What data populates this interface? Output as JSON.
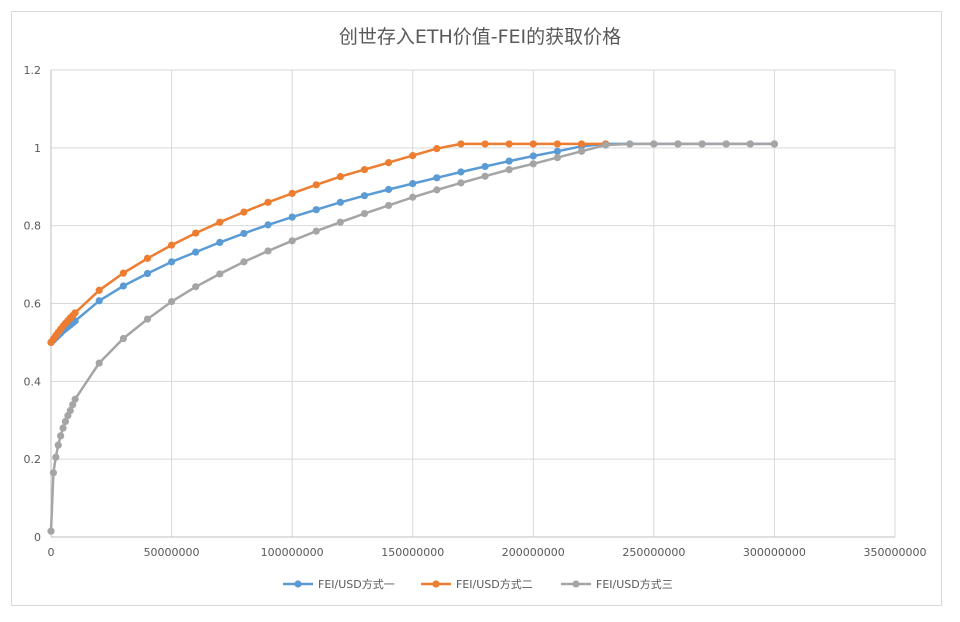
{
  "chart_data": {
    "type": "line",
    "title": "创世存入ETH价值-FEI的获取价格",
    "xlabel": "",
    "ylabel": "",
    "xlim": [
      0,
      350000000
    ],
    "ylim": [
      0,
      1.2
    ],
    "x_ticks": [
      "0",
      "50000000",
      "100000000",
      "150000000",
      "200000000",
      "250000000",
      "300000000",
      "350000000"
    ],
    "y_ticks": [
      "0",
      "0.2",
      "0.4",
      "0.6",
      "0.8",
      "1",
      "1.2"
    ],
    "grid": true,
    "legend_position": "bottom",
    "series": [
      {
        "name": "FEI/USD方式一",
        "color": "#5b9bd5",
        "x": [
          0,
          1000000,
          2000000,
          3000000,
          4000000,
          5000000,
          6000000,
          7000000,
          8000000,
          9000000,
          10000000,
          20000000,
          30000000,
          40000000,
          50000000,
          60000000,
          70000000,
          80000000,
          90000000,
          100000000,
          110000000,
          120000000,
          130000000,
          140000000,
          150000000,
          160000000,
          170000000,
          180000000,
          190000000,
          200000000,
          210000000,
          220000000,
          230000000,
          240000000,
          250000000,
          260000000,
          270000000,
          280000000,
          290000000,
          300000000
        ],
        "y": [
          0.5,
          0.506,
          0.512,
          0.518,
          0.524,
          0.53,
          0.535,
          0.54,
          0.545,
          0.55,
          0.555,
          0.607,
          0.645,
          0.677,
          0.707,
          0.732,
          0.757,
          0.78,
          0.802,
          0.822,
          0.841,
          0.86,
          0.877,
          0.893,
          0.908,
          0.923,
          0.938,
          0.952,
          0.966,
          0.979,
          0.991,
          1.004,
          1.01,
          1.01,
          1.01,
          1.01,
          1.01,
          1.01,
          1.01,
          1.01
        ]
      },
      {
        "name": "FEI/USD方式二",
        "color": "#ed7d31",
        "x": [
          0,
          1000000,
          2000000,
          3000000,
          4000000,
          5000000,
          6000000,
          7000000,
          8000000,
          9000000,
          10000000,
          20000000,
          30000000,
          40000000,
          50000000,
          60000000,
          70000000,
          80000000,
          90000000,
          100000000,
          110000000,
          120000000,
          130000000,
          140000000,
          150000000,
          160000000,
          170000000,
          180000000,
          190000000,
          200000000,
          210000000,
          220000000,
          230000000
        ],
        "y": [
          0.5,
          0.509,
          0.518,
          0.526,
          0.534,
          0.542,
          0.549,
          0.556,
          0.563,
          0.569,
          0.576,
          0.634,
          0.678,
          0.716,
          0.75,
          0.781,
          0.809,
          0.835,
          0.86,
          0.883,
          0.905,
          0.926,
          0.944,
          0.962,
          0.98,
          0.998,
          1.01,
          1.01,
          1.01,
          1.01,
          1.01,
          1.01,
          1.01
        ]
      },
      {
        "name": "FEI/USD方式三",
        "color": "#a5a5a5",
        "x": [
          0,
          1000000,
          2000000,
          3000000,
          4000000,
          5000000,
          6000000,
          7000000,
          8000000,
          9000000,
          10000000,
          20000000,
          30000000,
          40000000,
          50000000,
          60000000,
          70000000,
          80000000,
          90000000,
          100000000,
          110000000,
          120000000,
          130000000,
          140000000,
          150000000,
          160000000,
          170000000,
          180000000,
          190000000,
          200000000,
          210000000,
          220000000,
          230000000,
          240000000,
          250000000,
          260000000,
          270000000,
          280000000,
          290000000,
          300000000
        ],
        "y": [
          0.015,
          0.165,
          0.205,
          0.236,
          0.26,
          0.28,
          0.297,
          0.312,
          0.325,
          0.34,
          0.354,
          0.447,
          0.51,
          0.56,
          0.605,
          0.643,
          0.676,
          0.707,
          0.735,
          0.761,
          0.786,
          0.809,
          0.831,
          0.852,
          0.873,
          0.892,
          0.91,
          0.927,
          0.944,
          0.959,
          0.975,
          0.991,
          1.007,
          1.01,
          1.01,
          1.01,
          1.01,
          1.01,
          1.01,
          1.01
        ]
      }
    ]
  }
}
